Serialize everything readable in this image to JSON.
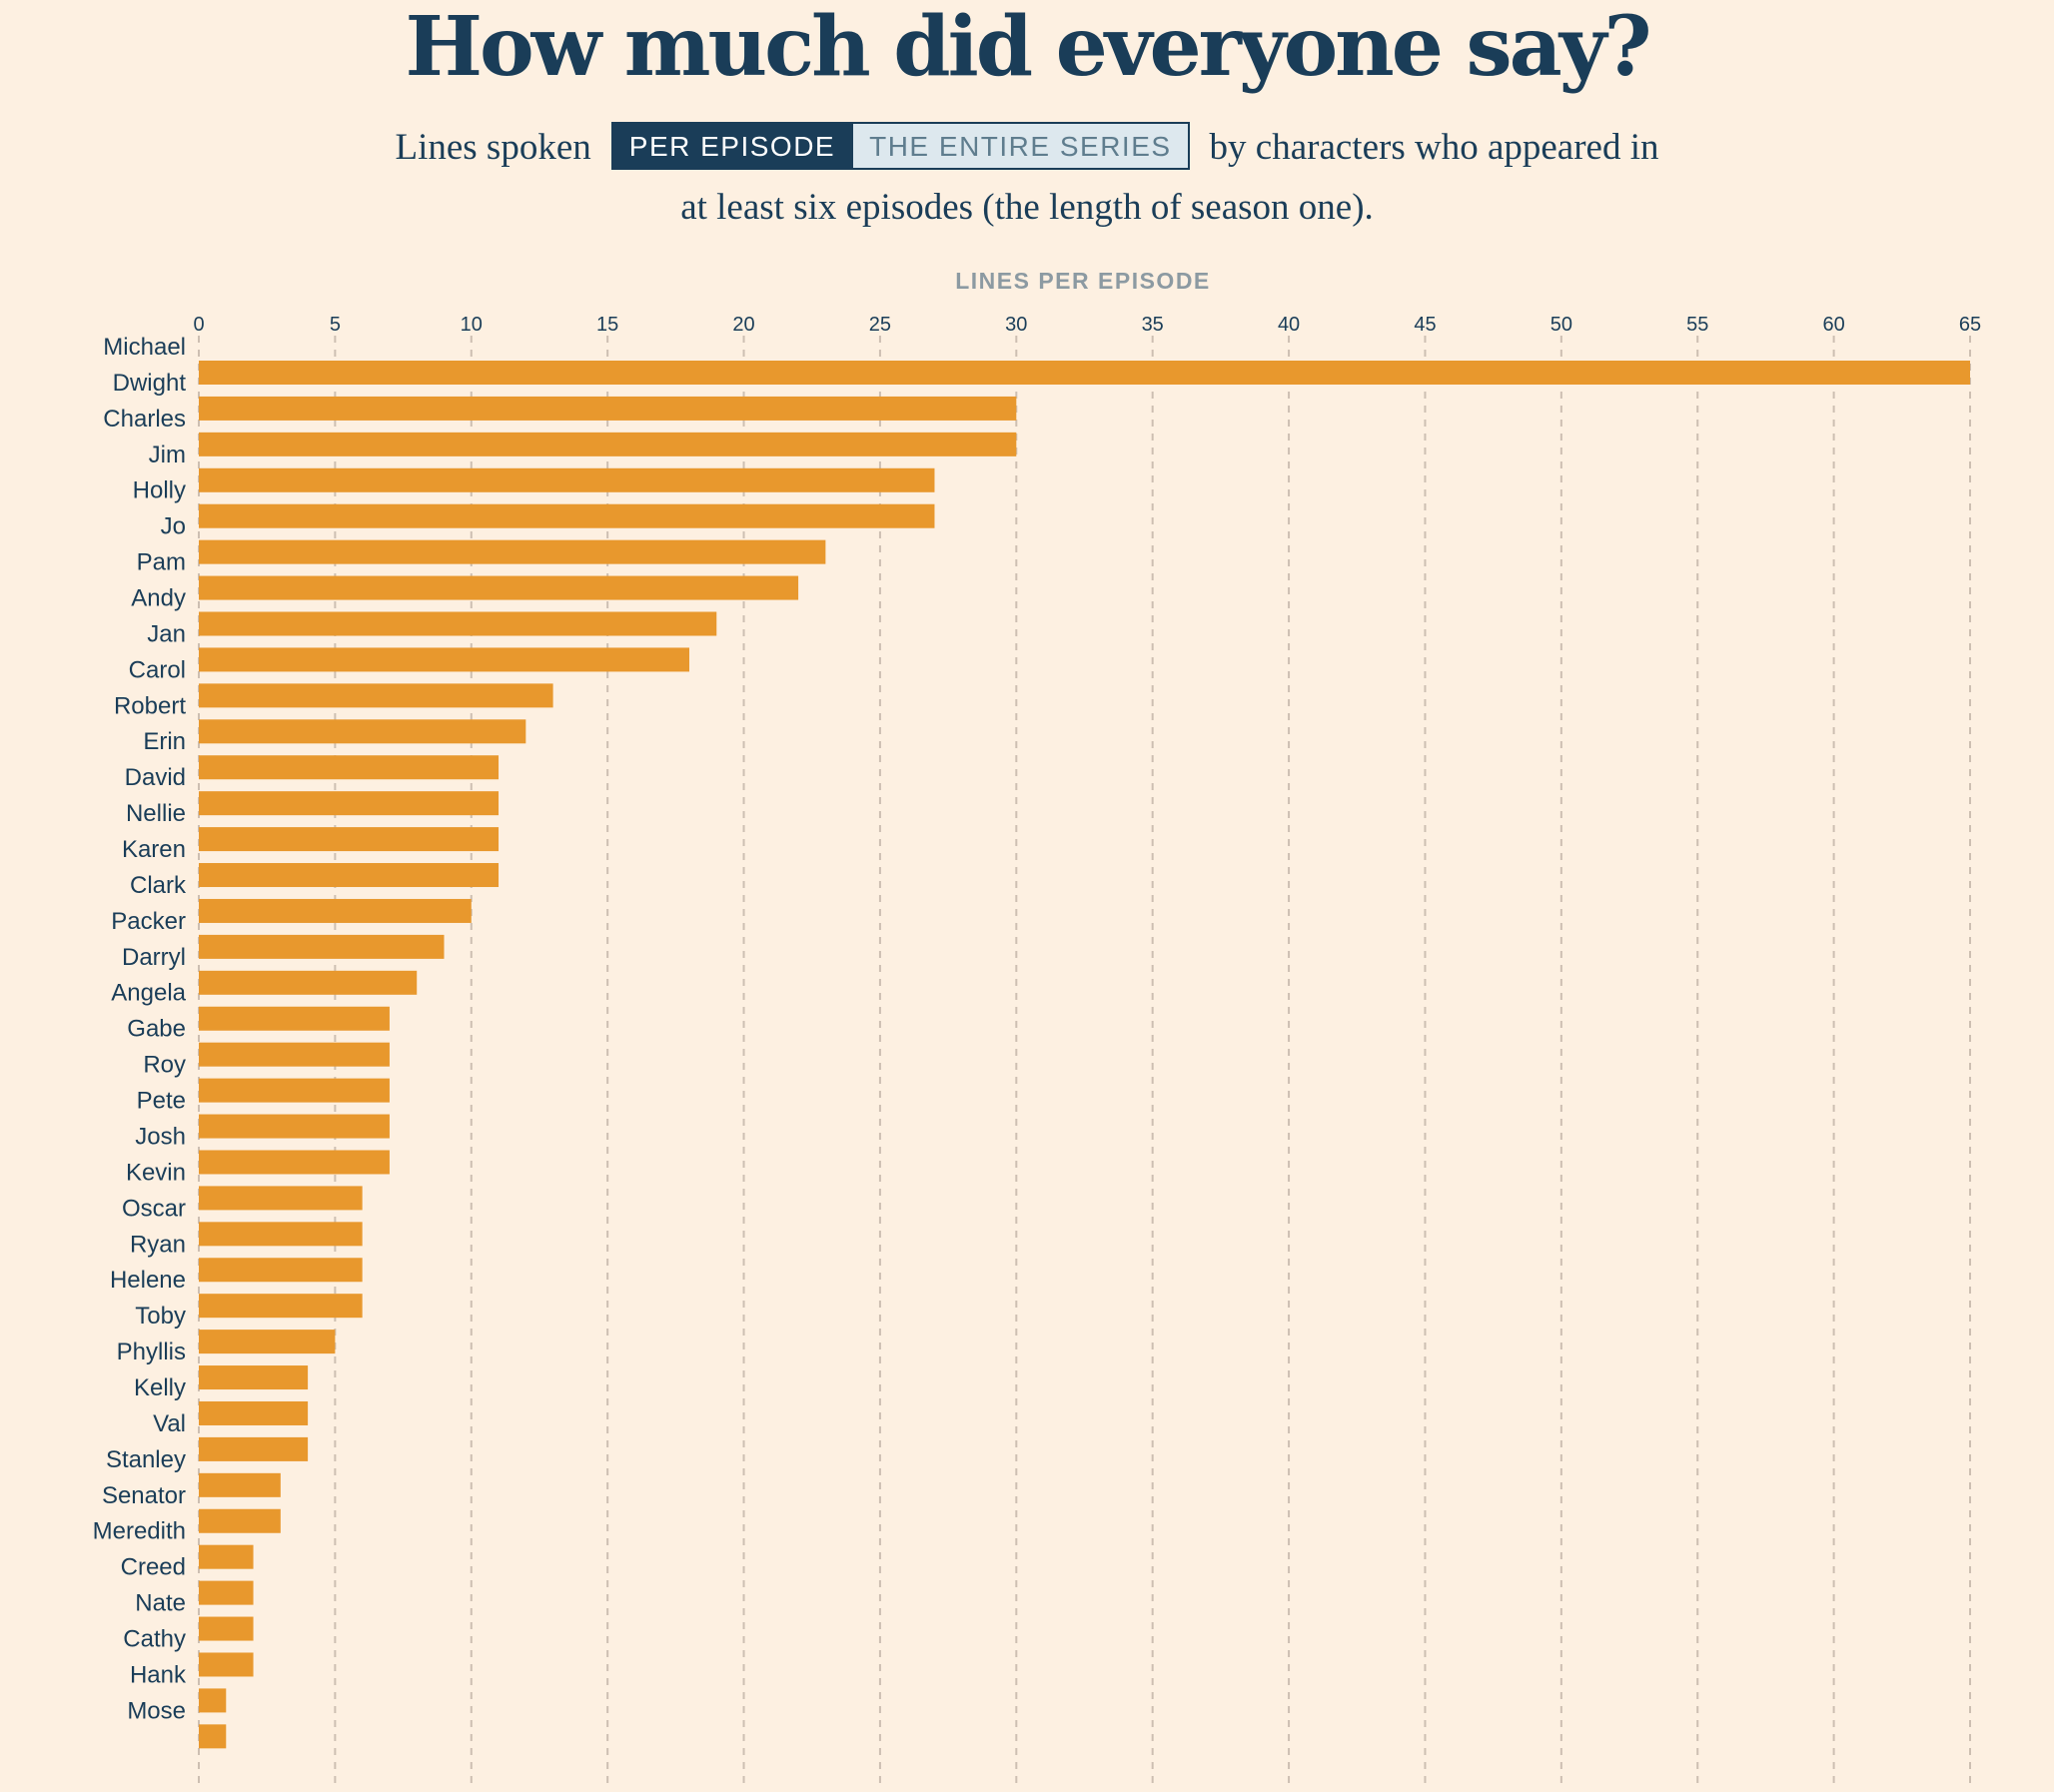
{
  "header": {
    "title": "How much did everyone say?",
    "subtitle_before": "Lines spoken",
    "subtitle_after": "by characters who appeared in",
    "subtitle_line2": "at least six episodes (the length of season one).",
    "toggle_options": [
      "PER EPISODE",
      "THE ENTIRE SERIES"
    ],
    "toggle_selected": "PER EPISODE"
  },
  "colors": {
    "background": "#fdf0e1",
    "bar": "#e8982d",
    "text": "#1a3d58",
    "axis_label": "#8c9aa2",
    "grid": "#cdbfb2"
  },
  "chart_data": {
    "type": "bar",
    "orientation": "horizontal",
    "xlabel": "LINES PER EPISODE",
    "xlim": [
      0,
      65
    ],
    "xticks": [
      0,
      5,
      10,
      15,
      20,
      25,
      30,
      35,
      40,
      45,
      50,
      55,
      60,
      65
    ],
    "grid": "vertical dashed",
    "categories": [
      "Michael",
      "Dwight",
      "Charles",
      "Jim",
      "Holly",
      "Jo",
      "Pam",
      "Andy",
      "Jan",
      "Carol",
      "Robert",
      "Erin",
      "David",
      "Nellie",
      "Karen",
      "Clark",
      "Packer",
      "Darryl",
      "Angela",
      "Gabe",
      "Roy",
      "Pete",
      "Josh",
      "Kevin",
      "Oscar",
      "Ryan",
      "Helene",
      "Toby",
      "Phyllis",
      "Kelly",
      "Val",
      "Stanley",
      "Senator",
      "Meredith",
      "Creed",
      "Nate",
      "Cathy",
      "Hank",
      "Mose"
    ],
    "values": [
      65,
      30,
      30,
      27,
      27,
      23,
      22,
      19,
      18,
      13,
      12,
      11,
      11,
      11,
      11,
      10,
      9,
      8,
      7,
      7,
      7,
      7,
      7,
      6,
      6,
      6,
      6,
      5,
      4,
      4,
      4,
      3,
      3,
      2,
      2,
      2,
      2,
      1,
      1
    ]
  }
}
